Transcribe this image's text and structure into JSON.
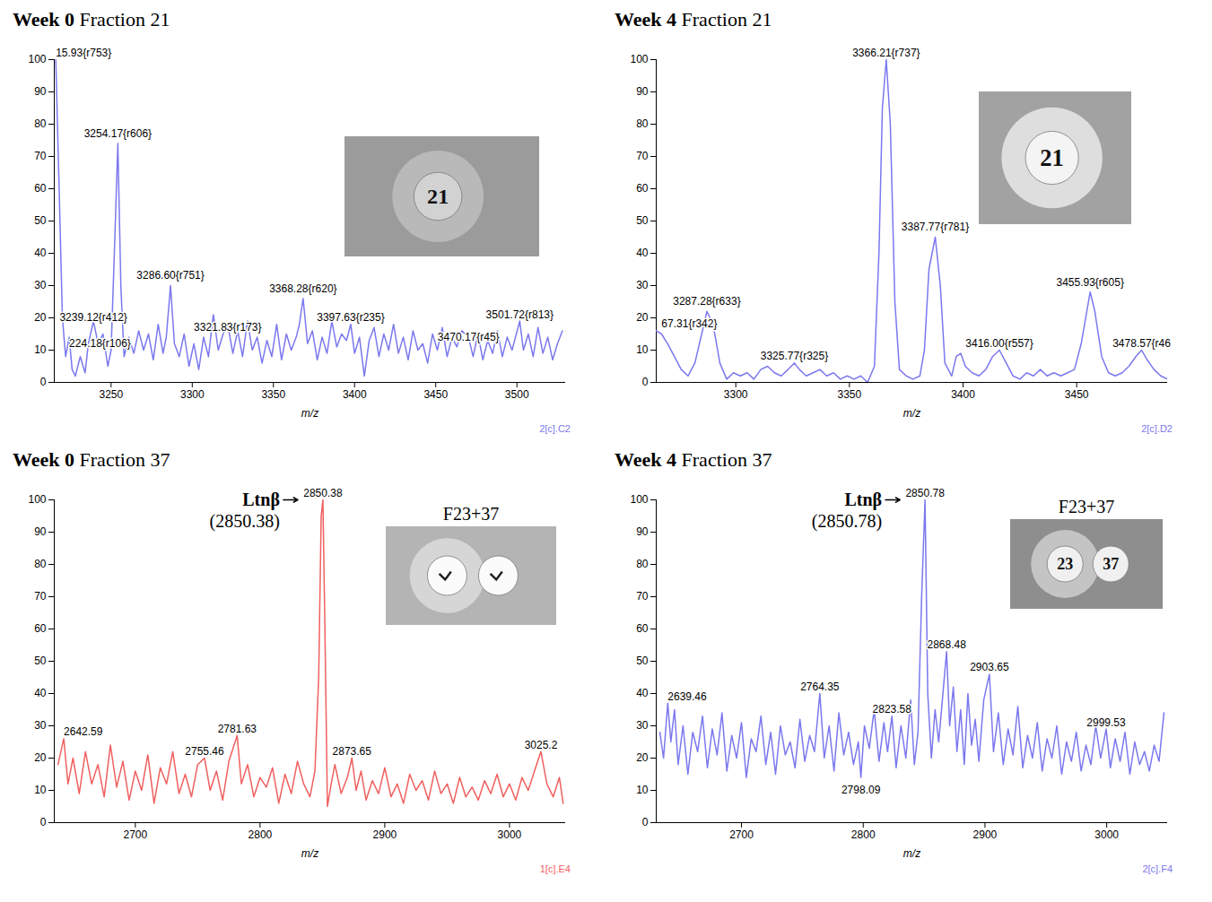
{
  "chart_data": [
    {
      "type": "line",
      "title": "Week 0 Fraction 21",
      "xlabel": "m/z",
      "xlim": [
        3215,
        3530
      ],
      "xticks": [
        3250,
        3300,
        3350,
        3400,
        3450,
        3500
      ],
      "ylim": [
        0,
        100
      ],
      "yticks": [
        0,
        10,
        20,
        30,
        40,
        50,
        60,
        70,
        80,
        90,
        100
      ],
      "color": "#7b78ee",
      "x": [
        3215.93,
        3218,
        3220,
        3222,
        3224.18,
        3226,
        3228,
        3231,
        3234,
        3236,
        3239.12,
        3242,
        3245,
        3248,
        3250,
        3252,
        3254.17,
        3256,
        3258,
        3261,
        3264,
        3267,
        3270,
        3273,
        3276,
        3279,
        3282,
        3284,
        3286.6,
        3289,
        3292,
        3295,
        3298,
        3301,
        3304,
        3307,
        3310,
        3313,
        3316,
        3319,
        3321.83,
        3325,
        3328,
        3331,
        3334,
        3337,
        3340,
        3343,
        3346,
        3349,
        3352,
        3355,
        3358,
        3361,
        3364,
        3366,
        3368.28,
        3371,
        3374,
        3377,
        3380,
        3383,
        3386,
        3389,
        3392,
        3395,
        3397.63,
        3400,
        3403,
        3406,
        3409,
        3412,
        3415,
        3418,
        3421,
        3424,
        3427,
        3430,
        3433,
        3436,
        3439,
        3442,
        3445,
        3448,
        3451,
        3454,
        3457,
        3460,
        3463,
        3466,
        3470.17,
        3473,
        3476,
        3479,
        3482,
        3485,
        3488,
        3491,
        3494,
        3497,
        3501.72,
        3504,
        3507,
        3510,
        3513,
        3516,
        3519,
        3522,
        3525,
        3528
      ],
      "values": [
        100,
        60,
        20,
        8,
        14,
        4,
        2,
        8,
        3,
        12,
        19,
        12,
        15,
        5,
        10,
        40,
        74,
        30,
        8,
        14,
        9,
        16,
        10,
        15,
        7,
        18,
        9,
        14,
        30,
        12,
        8,
        15,
        5,
        12,
        4,
        14,
        8,
        21,
        10,
        15,
        18,
        9,
        16,
        8,
        19,
        10,
        14,
        6,
        13,
        8,
        18,
        7,
        15,
        10,
        14,
        18,
        26,
        12,
        16,
        7,
        14,
        9,
        19,
        11,
        15,
        13,
        18,
        9,
        14,
        2,
        13,
        17,
        8,
        15,
        10,
        18,
        9,
        14,
        7,
        16,
        10,
        12,
        6,
        15,
        10,
        17,
        8,
        14,
        11,
        16,
        14,
        8,
        15,
        7,
        13,
        9,
        16,
        8,
        14,
        10,
        19,
        10,
        15,
        8,
        17,
        9,
        14,
        7,
        12,
        16
      ],
      "peak_labels": [
        {
          "x": 3215.93,
          "y": 101,
          "text": "15.93{r753}"
        },
        {
          "x": 3254.17,
          "y": 76,
          "text": "3254.17{r606}"
        },
        {
          "x": 3286.6,
          "y": 32,
          "text": "3286.60{r751}"
        },
        {
          "x": 3239.12,
          "y": 19,
          "text": "3239.12{r412}"
        },
        {
          "x": 3224.18,
          "y": 11,
          "text": "224.18{r106}"
        },
        {
          "x": 3321.83,
          "y": 16,
          "text": "3321.83{r173}"
        },
        {
          "x": 3368.28,
          "y": 28,
          "text": "3368.28{r620}"
        },
        {
          "x": 3397.63,
          "y": 19,
          "text": "3397.63{r235}"
        },
        {
          "x": 3470.17,
          "y": 13,
          "text": "3470.17{r45}"
        },
        {
          "x": 3501.72,
          "y": 20,
          "text": "3501.72{r813}"
        }
      ],
      "inset": {
        "labels": [
          "21"
        ]
      },
      "panel_code": "2[c].C2"
    },
    {
      "type": "line",
      "title": "Week 4 Fraction 21",
      "xlabel": "m/z",
      "xlim": [
        3265,
        3490
      ],
      "xticks": [
        3300,
        3350,
        3400,
        3450
      ],
      "ylim": [
        0,
        100
      ],
      "yticks": [
        0,
        10,
        20,
        30,
        40,
        50,
        60,
        70,
        80,
        90,
        100
      ],
      "color": "#7b78ee",
      "x": [
        3265,
        3267.31,
        3270,
        3273,
        3276,
        3279,
        3282,
        3285,
        3287.28,
        3290,
        3293,
        3296,
        3299,
        3302,
        3305,
        3308,
        3311,
        3314,
        3317,
        3320,
        3323,
        3325.77,
        3328,
        3331,
        3334,
        3337,
        3340,
        3343,
        3346,
        3349,
        3352,
        3355,
        3358,
        3361,
        3363,
        3364.5,
        3366.21,
        3368,
        3370,
        3372,
        3375,
        3378,
        3381,
        3383,
        3385,
        3387.77,
        3390,
        3392,
        3395,
        3397,
        3399,
        3401,
        3404,
        3407,
        3410,
        3413,
        3416,
        3419,
        3422,
        3425,
        3428,
        3431,
        3434,
        3437,
        3440,
        3443,
        3446,
        3449,
        3452,
        3455.93,
        3458,
        3461,
        3464,
        3467,
        3470,
        3473,
        3476,
        3478.57,
        3481,
        3484,
        3487,
        3490
      ],
      "values": [
        16,
        15,
        12,
        8,
        4,
        2,
        6,
        15,
        22,
        18,
        6,
        1,
        3,
        2,
        3,
        1,
        4,
        5,
        3,
        2,
        4,
        6,
        4,
        2,
        3,
        4,
        2,
        3,
        1,
        2,
        1,
        2,
        0,
        5,
        40,
        85,
        100,
        80,
        25,
        4,
        2,
        1,
        2,
        10,
        35,
        45,
        30,
        6,
        2,
        8,
        9,
        5,
        3,
        2,
        4,
        8,
        10,
        6,
        2,
        1,
        3,
        2,
        4,
        2,
        3,
        2,
        3,
        4,
        12,
        28,
        22,
        8,
        3,
        2,
        3,
        5,
        8,
        10,
        7,
        4,
        2,
        1
      ],
      "peak_labels": [
        {
          "x": 3267.31,
          "y": 17,
          "text": "67.31{r342}"
        },
        {
          "x": 3287.28,
          "y": 24,
          "text": "3287.28{r633}"
        },
        {
          "x": 3325.77,
          "y": 7,
          "text": "3325.77{r325}"
        },
        {
          "x": 3366.21,
          "y": 101,
          "text": "3366.21{r737}"
        },
        {
          "x": 3387.77,
          "y": 47,
          "text": "3387.77{r781}"
        },
        {
          "x": 3416,
          "y": 11,
          "text": "3416.00{r557}"
        },
        {
          "x": 3455.93,
          "y": 30,
          "text": "3455.93{r605}"
        },
        {
          "x": 3478.57,
          "y": 11,
          "text": "3478.57{r46"
        }
      ],
      "inset": {
        "labels": [
          "21"
        ]
      },
      "panel_code": "2[c].D2"
    },
    {
      "type": "line",
      "title": "Week 0 Fraction 37",
      "xlabel": "m/z",
      "xlim": [
        2635,
        3045
      ],
      "xticks": [
        2700,
        2800,
        2900,
        3000
      ],
      "ylim": [
        0,
        100
      ],
      "yticks": [
        0,
        10,
        20,
        30,
        40,
        50,
        60,
        70,
        80,
        90,
        100
      ],
      "color": "#f0605f",
      "x": [
        2638,
        2642.59,
        2646,
        2650,
        2655,
        2660,
        2665,
        2670,
        2675,
        2680,
        2685,
        2690,
        2695,
        2700,
        2705,
        2710,
        2715,
        2720,
        2725,
        2730,
        2735,
        2740,
        2745,
        2750,
        2755.46,
        2760,
        2765,
        2770,
        2775,
        2781.63,
        2785,
        2790,
        2795,
        2800,
        2805,
        2810,
        2815,
        2820,
        2825,
        2830,
        2835,
        2840,
        2844,
        2847,
        2849,
        2850.38,
        2852,
        2854,
        2857,
        2860,
        2865,
        2870,
        2873.65,
        2877,
        2881,
        2885,
        2890,
        2895,
        2900,
        2905,
        2910,
        2915,
        2920,
        2925,
        2930,
        2935,
        2940,
        2945,
        2950,
        2955,
        2960,
        2965,
        2970,
        2975,
        2980,
        2985,
        2990,
        2995,
        3000,
        3005,
        3010,
        3015,
        3020,
        3025.2,
        3030,
        3035,
        3040,
        3043
      ],
      "values": [
        18,
        26,
        12,
        20,
        9,
        22,
        12,
        18,
        8,
        24,
        11,
        19,
        7,
        16,
        10,
        21,
        6,
        17,
        12,
        22,
        9,
        15,
        8,
        18,
        20,
        10,
        16,
        7,
        19,
        27,
        12,
        18,
        8,
        14,
        11,
        17,
        6,
        15,
        9,
        19,
        12,
        8,
        16,
        45,
        95,
        100,
        60,
        5,
        12,
        18,
        9,
        14,
        20,
        10,
        16,
        7,
        13,
        9,
        17,
        8,
        12,
        6,
        15,
        10,
        13,
        7,
        16,
        9,
        12,
        6,
        14,
        8,
        11,
        7,
        13,
        9,
        15,
        8,
        12,
        7,
        14,
        10,
        16,
        22,
        12,
        8,
        14,
        6
      ],
      "peak_labels": [
        {
          "x": 2642.59,
          "y": 27,
          "text": "2642.59"
        },
        {
          "x": 2755.46,
          "y": 21,
          "text": "2755.46"
        },
        {
          "x": 2781.63,
          "y": 28,
          "text": "2781.63"
        },
        {
          "x": 2850.38,
          "y": 101,
          "text": "2850.38"
        },
        {
          "x": 2873.65,
          "y": 21,
          "text": "2873.65"
        },
        {
          "x": 3025.2,
          "y": 23,
          "text": "3025.2"
        }
      ],
      "callout": {
        "x": 2850.38,
        "y": 100,
        "label": "Ltnβ",
        "note": "(2850.38)"
      },
      "inset": {
        "caption": "F23+37",
        "labels": [
          null,
          null
        ]
      },
      "panel_code": "1[c].E4"
    },
    {
      "type": "line",
      "title": "Week 4 Fraction 37",
      "xlabel": "m/z",
      "xlim": [
        2630,
        3050
      ],
      "xticks": [
        2700,
        2800,
        2900,
        3000
      ],
      "ylim": [
        0,
        100
      ],
      "yticks": [
        0,
        10,
        20,
        30,
        40,
        50,
        60,
        70,
        80,
        90,
        100
      ],
      "color": "#7b78ee",
      "x": [
        2633,
        2636,
        2639.46,
        2642,
        2645,
        2648,
        2652,
        2656,
        2660,
        2664,
        2668,
        2672,
        2676,
        2680,
        2684,
        2688,
        2692,
        2696,
        2700,
        2704,
        2708,
        2712,
        2716,
        2720,
        2724,
        2728,
        2732,
        2736,
        2740,
        2744,
        2748,
        2752,
        2756,
        2760,
        2764.35,
        2768,
        2772,
        2776,
        2780,
        2784,
        2788,
        2792,
        2796,
        2798.09,
        2801,
        2805,
        2809,
        2813,
        2817,
        2820,
        2823.58,
        2827,
        2831,
        2835,
        2839,
        2842,
        2845,
        2848,
        2850.78,
        2853,
        2856,
        2859,
        2862,
        2865,
        2868.48,
        2871,
        2874,
        2877,
        2880,
        2883,
        2886,
        2889,
        2892,
        2895,
        2899,
        2903.65,
        2907,
        2911,
        2915,
        2919,
        2923,
        2927,
        2931,
        2935,
        2939,
        2943,
        2947,
        2951,
        2955,
        2959,
        2963,
        2967,
        2971,
        2975,
        2979,
        2983,
        2987,
        2991,
        2995,
        2999.53,
        3003,
        3007,
        3011,
        3015,
        3019,
        3023,
        3027,
        3031,
        3035,
        3039,
        3043,
        3047
      ],
      "values": [
        28,
        20,
        37,
        25,
        35,
        18,
        30,
        15,
        28,
        22,
        33,
        17,
        29,
        21,
        34,
        16,
        27,
        20,
        31,
        14,
        26,
        22,
        33,
        18,
        28,
        15,
        30,
        21,
        25,
        17,
        32,
        19,
        27,
        22,
        40,
        20,
        30,
        16,
        34,
        21,
        28,
        18,
        25,
        14,
        30,
        23,
        35,
        19,
        31,
        22,
        33,
        17,
        30,
        20,
        38,
        18,
        28,
        70,
        100,
        40,
        20,
        35,
        25,
        38,
        53,
        30,
        42,
        22,
        35,
        18,
        40,
        24,
        32,
        19,
        38,
        46,
        22,
        34,
        18,
        29,
        21,
        36,
        17,
        27,
        20,
        31,
        16,
        26,
        20,
        30,
        15,
        25,
        19,
        28,
        16,
        24,
        18,
        30,
        20,
        29,
        17,
        26,
        19,
        28,
        15,
        25,
        18,
        22,
        16,
        24,
        19,
        34
      ],
      "peak_labels": [
        {
          "x": 2639.46,
          "y": 38,
          "text": "2639.46"
        },
        {
          "x": 2764.35,
          "y": 41,
          "text": "2764.35"
        },
        {
          "x": 2823.58,
          "y": 34,
          "text": "2823.58"
        },
        {
          "x": 2798.09,
          "y": 9,
          "text": "2798.09"
        },
        {
          "x": 2850.78,
          "y": 101,
          "text": "2850.78"
        },
        {
          "x": 2868.48,
          "y": 54,
          "text": "2868.48"
        },
        {
          "x": 2903.65,
          "y": 47,
          "text": "2903.65"
        },
        {
          "x": 2999.53,
          "y": 30,
          "text": "2999.53"
        }
      ],
      "callout": {
        "x": 2850.78,
        "y": 100,
        "label": "Ltnβ",
        "note": "(2850.78)"
      },
      "inset": {
        "caption": "F23+37",
        "labels": [
          "23",
          "37"
        ]
      },
      "panel_code": "2[c].F4"
    }
  ]
}
